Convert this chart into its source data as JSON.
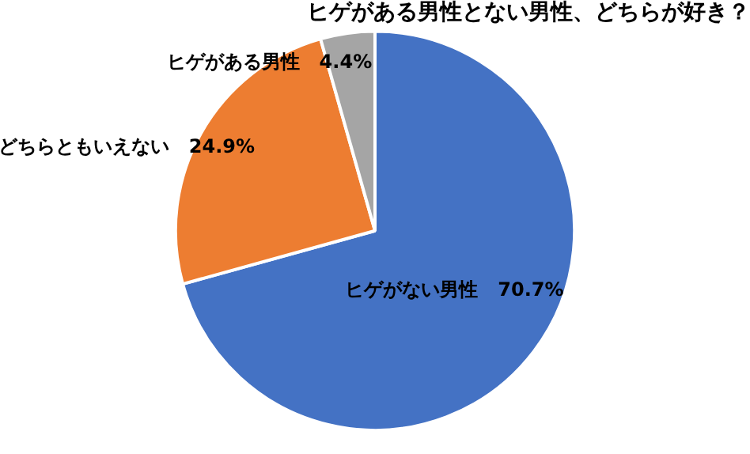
{
  "chart_data": {
    "type": "pie",
    "title": "ヒゲがある男性とない男性、どちらが好き？",
    "categories": [
      "ヒゲがない男性",
      "どちらともいえない",
      "ヒゲがある男性"
    ],
    "values": [
      70.7,
      24.9,
      4.4
    ],
    "colors": [
      "#4472c4",
      "#ed7d31",
      "#a5a5a5"
    ],
    "value_labels": [
      "70.7%",
      "24.9%",
      "4.4%"
    ],
    "legend": false
  }
}
